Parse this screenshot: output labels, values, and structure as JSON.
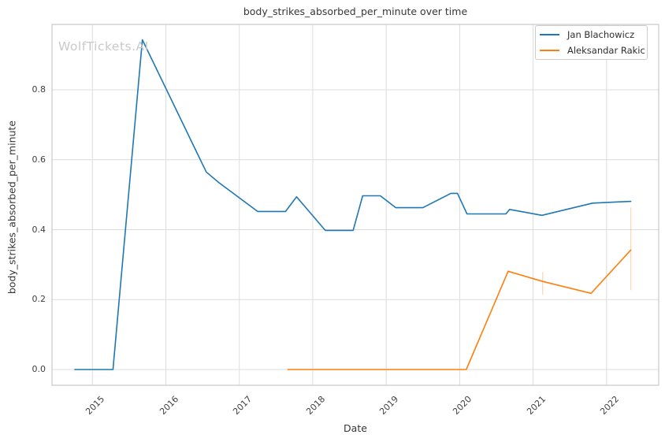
{
  "title": "body_strikes_absorbed_per_minute over time",
  "watermark": "WolfTickets.AI",
  "colors": {
    "background": "#ffffff",
    "grid": "#dcdcdc",
    "frame": "#c9c9c9",
    "text": "#363636",
    "tick_text": "#404040",
    "watermark": "#c9c9c9",
    "legend_border": "#cccccc",
    "series_blue": "#1f77b4",
    "series_orange": "#ff7f0e"
  },
  "chart_data": {
    "type": "line",
    "title": "body_strikes_absorbed_per_minute over time",
    "xlabel": "Date",
    "ylabel": "body_strikes_absorbed_per_minute",
    "xlim": [
      2014.45,
      2022.71
    ],
    "ylim": [
      -0.045,
      0.987
    ],
    "xticks": [
      2015,
      2016,
      2017,
      2018,
      2019,
      2020,
      2021,
      2022
    ],
    "yticks": [
      0.0,
      0.2,
      0.4,
      0.6,
      0.8
    ],
    "grid": true,
    "legend_position": "upper right",
    "series": [
      {
        "name": "Jan Blachowicz",
        "color": "#1f77b4",
        "x": [
          2014.76,
          2015.28,
          2015.68,
          2016.55,
          2016.72,
          2017.25,
          2017.63,
          2017.78,
          2018.17,
          2018.55,
          2018.68,
          2018.92,
          2019.13,
          2019.5,
          2019.88,
          2019.97,
          2020.1,
          2020.63,
          2020.68,
          2021.12,
          2021.81,
          2022.33
        ],
        "y": [
          0.0,
          0.0,
          0.943,
          0.565,
          0.535,
          0.452,
          0.452,
          0.494,
          0.398,
          0.398,
          0.497,
          0.497,
          0.463,
          0.463,
          0.504,
          0.504,
          0.445,
          0.445,
          0.458,
          0.441,
          0.476,
          0.481
        ]
      },
      {
        "name": "Aleksandar Rakic",
        "color": "#ff7f0e",
        "x": [
          2017.66,
          2020.09,
          2020.66,
          2021.13,
          2021.79,
          2022.33
        ],
        "y": [
          0.0,
          0.0,
          0.281,
          0.252,
          0.218,
          0.342
        ]
      }
    ],
    "error_bars": [
      {
        "x": 2021.13,
        "y_low": 0.214,
        "y_high": 0.279,
        "color": "#ff7f0e"
      },
      {
        "x": 2022.33,
        "y_low": 0.227,
        "y_high": 0.464,
        "color": "#ff7f0e"
      }
    ]
  }
}
